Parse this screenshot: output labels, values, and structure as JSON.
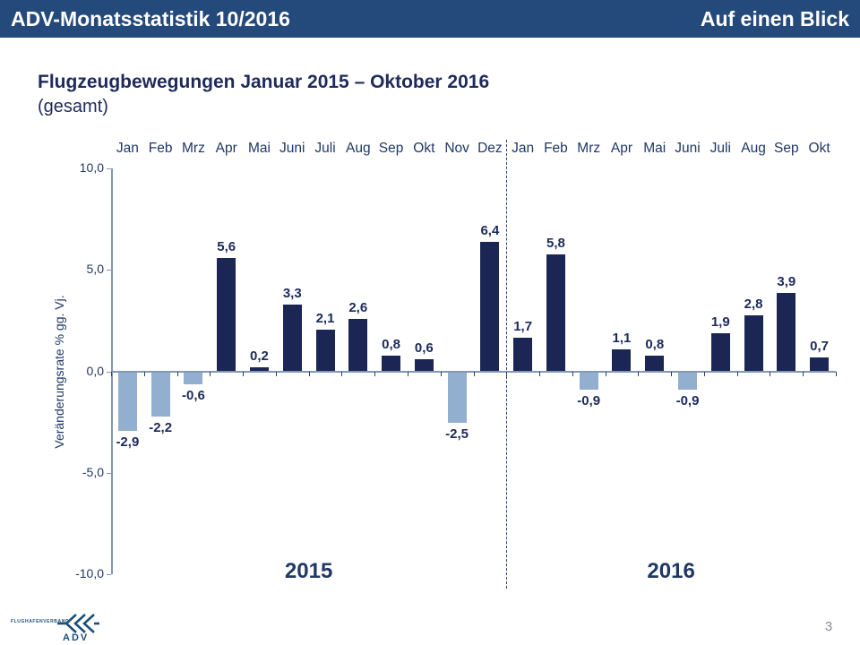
{
  "header": {
    "left": "ADV-Monatsstatistik 10/2016",
    "right": "Auf einen Blick",
    "bg_color": "#24497B"
  },
  "title": {
    "line1": "Flugzeugbewegungen Januar 2015 – Oktober 2016",
    "line2": "(gesamt)"
  },
  "chart_data": {
    "type": "bar",
    "categories": [
      "Jan",
      "Feb",
      "Mrz",
      "Apr",
      "Mai",
      "Juni",
      "Juli",
      "Aug",
      "Sep",
      "Okt",
      "Nov",
      "Dez",
      "Jan",
      "Feb",
      "Mrz",
      "Apr",
      "Mai",
      "Juni",
      "Juli",
      "Aug",
      "Sep",
      "Okt"
    ],
    "values": [
      -2.9,
      -2.2,
      -0.6,
      5.6,
      0.2,
      3.3,
      2.1,
      2.6,
      0.8,
      0.6,
      -2.5,
      6.4,
      1.7,
      5.8,
      -0.9,
      1.1,
      0.8,
      -0.9,
      1.9,
      2.8,
      3.9,
      0.7
    ],
    "labels": [
      "-2,9",
      "-2,2",
      "-0,6",
      "5,6",
      "0,2",
      "3,3",
      "2,1",
      "2,6",
      "0,8",
      "0,6",
      "-2,5",
      "6,4",
      "1,7",
      "5,8",
      "-0,9",
      "1,1",
      "0,8",
      "-0,9",
      "1,9",
      "2,8",
      "3,9",
      "0,7"
    ],
    "title": "Flugzeugbewegungen Januar 2015 – Oktober 2016 (gesamt)",
    "xlabel": "",
    "ylabel": "Veränderungsrate % gg. Vj.",
    "ylim": [
      -10,
      10
    ],
    "yticks": [
      "10,0",
      "5,0",
      "0,0",
      "-5,0",
      "-10,0"
    ],
    "grid": false,
    "legend": false,
    "group_labels": [
      "2015",
      "2016"
    ],
    "separator_after_index": 11,
    "colors": {
      "positive": "#1C2655",
      "negative": "#93AFCF",
      "axis": "#8496B5",
      "text": "#1F3864"
    }
  },
  "footer": {
    "logo_top": "FLUGHAFENVERBAND",
    "logo_bottom": "ADV",
    "logo_icon": "triple-chevron-left-icon",
    "page_number": "3"
  }
}
